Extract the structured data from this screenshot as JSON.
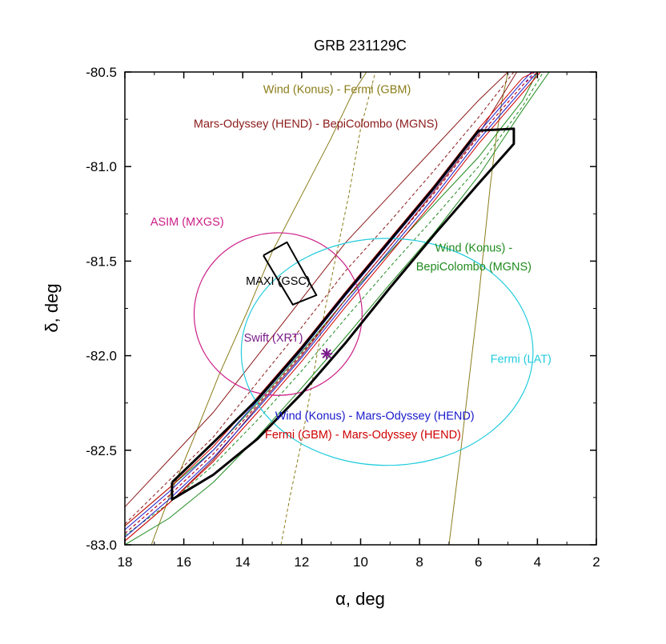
{
  "chart_data": {
    "type": "line",
    "title": "GRB 231129C",
    "xlabel": "α, deg",
    "ylabel": "δ, deg",
    "xlim": [
      18,
      2
    ],
    "ylim": [
      -83.0,
      -80.5
    ],
    "x_reversed": true,
    "x_ticks": [
      "18",
      "16",
      "14",
      "12",
      "10",
      "8",
      "6",
      "4",
      "2"
    ],
    "y_ticks": [
      "-80.5",
      "-81.0",
      "-81.5",
      "-82.0",
      "-82.5",
      "-83.0"
    ],
    "series": [
      {
        "name": "Wind (Konus) - Fermi (GBM)",
        "color": "#8b7d1a",
        "role": "annulus-bounds-and-center",
        "bounds": [
          {
            "x": [
              17.1,
              16.5,
              15.7,
              14.8,
              13.8,
              13.0,
              12.0,
              11.0,
              10.3,
              9.8
            ],
            "y": [
              -83.0,
              -82.75,
              -82.45,
              -82.1,
              -81.75,
              -81.45,
              -81.15,
              -80.85,
              -80.62,
              -80.5
            ]
          },
          {
            "x": [
              7.0,
              6.6,
              6.3,
              6.0,
              5.8,
              5.6,
              5.4,
              5.2,
              5.0
            ],
            "y": [
              -83.0,
              -82.5,
              -82.1,
              -81.7,
              -81.4,
              -81.1,
              -80.85,
              -80.65,
              -80.5
            ]
          }
        ],
        "center": {
          "x": [
            12.7,
            12.4,
            12.0,
            11.6,
            11.2,
            10.8,
            10.4,
            10.0,
            9.5
          ],
          "y": [
            -83.0,
            -82.75,
            -82.45,
            -82.1,
            -81.75,
            -81.45,
            -81.15,
            -80.8,
            -80.5
          ]
        }
      },
      {
        "name": "Mars-Odyssey (HEND) - BepiColombo (MGNS)",
        "color": "#8b1a1a",
        "role": "annulus-bounds-and-center",
        "bounds": [
          {
            "x": [
              18.0,
              16.5,
              15.0,
              13.5,
              12.0,
              10.5,
              9.0,
              7.5,
              6.0,
              5.0
            ],
            "y": [
              -82.8,
              -82.55,
              -82.3,
              -82.0,
              -81.7,
              -81.4,
              -81.15,
              -80.9,
              -80.65,
              -80.5
            ]
          },
          {
            "x": [
              18.0,
              16.5,
              15.0,
              13.5,
              12.0,
              10.5,
              9.0,
              7.5,
              6.0,
              4.7
            ],
            "y": [
              -82.98,
              -82.78,
              -82.55,
              -82.27,
              -82.0,
              -81.7,
              -81.42,
              -81.13,
              -80.83,
              -80.5
            ]
          }
        ],
        "center": {
          "x": [
            18.0,
            16.5,
            15.0,
            13.5,
            12.0,
            10.5,
            9.0,
            7.5,
            6.0,
            4.8
          ],
          "y": [
            -82.89,
            -82.66,
            -82.43,
            -82.14,
            -81.85,
            -81.55,
            -81.29,
            -81.02,
            -80.74,
            -80.5
          ]
        }
      },
      {
        "name": "Wind (Konus) - BepiColombo (MGNS)",
        "color": "#1f8b1f",
        "role": "annulus-bounds-and-center",
        "bounds": [
          {
            "x": [
              18.0,
              16.5,
              15.0,
              13.5,
              12.0,
              10.5,
              9.0,
              7.5,
              6.0,
              4.5,
              4.0
            ],
            "y": [
              -82.9,
              -82.7,
              -82.5,
              -82.25,
              -81.98,
              -81.7,
              -81.45,
              -81.2,
              -80.95,
              -80.65,
              -80.5
            ]
          },
          {
            "x": [
              18.0,
              16.5,
              15.0,
              13.5,
              12.0,
              10.5,
              9.0,
              7.5,
              6.0,
              4.5,
              3.6
            ],
            "y": [
              -83.0,
              -82.86,
              -82.67,
              -82.43,
              -82.17,
              -81.9,
              -81.62,
              -81.35,
              -81.05,
              -80.7,
              -80.5
            ]
          }
        ],
        "center": {
          "x": [
            18.0,
            16.5,
            15.0,
            13.5,
            12.0,
            10.5,
            9.0,
            7.5,
            6.0,
            4.5,
            3.8
          ],
          "y": [
            -82.95,
            -82.78,
            -82.58,
            -82.34,
            -82.08,
            -81.8,
            -81.53,
            -81.27,
            -81.0,
            -80.68,
            -80.5
          ]
        }
      },
      {
        "name": "Wind (Konus) - Mars-Odyssey (HEND)",
        "color": "#1a1acc",
        "role": "annulus-bounds-and-center",
        "bounds": [
          {
            "x": [
              18.0,
              16.5,
              15.0,
              13.5,
              12.0,
              10.5,
              9.0,
              7.5,
              6.0,
              4.5,
              4.2
            ],
            "y": [
              -82.92,
              -82.72,
              -82.5,
              -82.24,
              -81.97,
              -81.68,
              -81.4,
              -81.12,
              -80.82,
              -80.55,
              -80.5
            ]
          },
          {
            "x": [
              18.0,
              16.5,
              15.0,
              13.5,
              12.0,
              10.5,
              9.0,
              7.5,
              6.0,
              4.5,
              4.0
            ],
            "y": [
              -82.96,
              -82.76,
              -82.54,
              -82.28,
              -82.01,
              -81.72,
              -81.44,
              -81.16,
              -80.86,
              -80.59,
              -80.5
            ]
          }
        ],
        "center": {
          "x": [
            18.0,
            16.5,
            15.0,
            13.5,
            12.0,
            10.5,
            9.0,
            7.5,
            6.0,
            4.5,
            4.1
          ],
          "y": [
            -82.94,
            -82.74,
            -82.52,
            -82.26,
            -81.99,
            -81.7,
            -81.42,
            -81.14,
            -80.84,
            -80.57,
            -80.5
          ]
        }
      },
      {
        "name": "Fermi (GBM) - Mars-Odyssey (HEND)",
        "color": "#d00000",
        "role": "annulus-bounds-and-center",
        "bounds": [
          {
            "x": [
              18.0,
              16.5,
              15.0,
              13.5,
              12.0,
              10.5,
              9.0,
              7.5,
              6.0,
              4.5,
              4.1
            ],
            "y": [
              -82.9,
              -82.7,
              -82.48,
              -82.22,
              -81.95,
              -81.66,
              -81.38,
              -81.1,
              -80.8,
              -80.53,
              -80.5
            ]
          },
          {
            "x": [
              18.0,
              16.5,
              15.0,
              13.5,
              12.0,
              10.5,
              9.0,
              7.5,
              6.0,
              4.5,
              3.9
            ],
            "y": [
              -82.98,
              -82.78,
              -82.56,
              -82.3,
              -82.03,
              -81.74,
              -81.46,
              -81.18,
              -80.88,
              -80.61,
              -80.5
            ]
          }
        ],
        "center": {
          "x": [
            18.0,
            16.5,
            15.0,
            13.5,
            12.0,
            10.5,
            9.0,
            7.5,
            6.0,
            4.5,
            4.0
          ],
          "y": [
            -82.94,
            -82.74,
            -82.52,
            -82.26,
            -81.99,
            -81.7,
            -81.42,
            -81.14,
            -80.84,
            -80.57,
            -80.5
          ]
        }
      },
      {
        "name": "ASIM (MXGS)",
        "color": "#cc1f88",
        "role": "circle",
        "center": {
          "x": 12.8,
          "y": -81.78
        },
        "radius_deg_y": 0.43,
        "radius_x": 2.85
      },
      {
        "name": "Fermi (LAT)",
        "color": "#22ccdd",
        "role": "circle",
        "center": {
          "x": 9.1,
          "y": -81.98
        },
        "radius_deg_y": 0.6,
        "radius_x": 4.95
      },
      {
        "name": "MAXI (GSC)",
        "color": "#000000",
        "role": "polygon",
        "x": [
          13.3,
          12.5,
          11.5,
          12.3,
          13.3
        ],
        "y": [
          -81.47,
          -81.4,
          -81.68,
          -81.73,
          -81.47
        ]
      },
      {
        "name": "IPN box",
        "color": "#000000",
        "role": "polygon",
        "x": [
          16.4,
          15.0,
          13.5,
          12.0,
          10.5,
          9.0,
          7.5,
          6.0,
          4.8,
          4.8,
          6.0,
          7.5,
          9.0,
          10.5,
          12.0,
          13.5,
          15.0,
          16.4,
          16.4
        ],
        "y": [
          -82.67,
          -82.46,
          -82.23,
          -81.96,
          -81.67,
          -81.39,
          -81.11,
          -80.81,
          -80.8,
          -80.88,
          -81.09,
          -81.36,
          -81.64,
          -81.93,
          -82.2,
          -82.44,
          -82.63,
          -82.76,
          -82.67
        ]
      },
      {
        "name": "Swift (XRT)",
        "color": "#7a1a8a",
        "role": "marker",
        "x": 11.15,
        "y": -81.99
      }
    ],
    "annotations": [
      {
        "text": "Wind (Konus) - Fermi (GBM)",
        "color": "#8b7d1a",
        "x_pos": 45.0,
        "y_pos": 4.5
      },
      {
        "text": "Mars-Odyssey (HEND) - BepiColombo (MGNS)",
        "color": "#8b1a1a",
        "x_pos": 40.5,
        "y_pos": 11.8
      },
      {
        "text": "ASIM (MXGS)",
        "color": "#cc1f88",
        "x_pos": 13.2,
        "y_pos": 32.5
      },
      {
        "text": "MAXI (GSC)",
        "color": "#000000",
        "x_pos": 32.5,
        "y_pos": 45.0
      },
      {
        "text": "Wind (Konus) -",
        "color": "#1f8b1f",
        "x_pos": 74.0,
        "y_pos": 38.0
      },
      {
        "text": "BepiColombo (MGNS)",
        "color": "#1f8b1f",
        "x_pos": 74.0,
        "y_pos": 42.0
      },
      {
        "text": "Swift (XRT)",
        "color": "#7a1a8a",
        "x_pos": 31.5,
        "y_pos": 57.0
      },
      {
        "text": "Fermi (LAT)",
        "color": "#22ccdd",
        "x_pos": 84.0,
        "y_pos": 61.5
      },
      {
        "text": "Wind (Konus) - Mars-Odyssey (HEND)",
        "color": "#1a1acc",
        "x_pos": 53.0,
        "y_pos": 73.5
      },
      {
        "text": "Fermi (GBM) - Mars-Odyssey (HEND)",
        "color": "#d00000",
        "x_pos": 50.5,
        "y_pos": 77.5
      }
    ],
    "grid": false,
    "legend": "none"
  }
}
